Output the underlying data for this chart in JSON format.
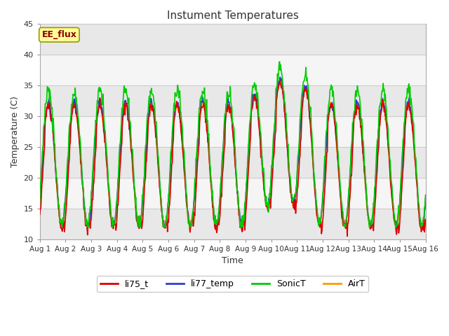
{
  "title": "Instument Temperatures",
  "xlabel": "Time",
  "ylabel": "Temperature (C)",
  "ylim": [
    10,
    45
  ],
  "xlim": [
    0,
    15
  ],
  "xtick_labels": [
    "Aug 1",
    "Aug 2",
    "Aug 3",
    "Aug 4",
    "Aug 5",
    "Aug 6",
    "Aug 7",
    "Aug 8",
    "Aug 9",
    "Aug 10",
    "Aug 11",
    "Aug 12",
    "Aug 13",
    "Aug 14",
    "Aug 15",
    "Aug 16"
  ],
  "ytick_values": [
    10,
    15,
    20,
    25,
    30,
    35,
    40,
    45
  ],
  "fig_bg_color": "#ffffff",
  "plot_bg_color": "#ffffff",
  "band_colors": [
    "#e8e8e8",
    "#f5f5f5"
  ],
  "grid_color": "#cccccc",
  "annotation_text": "EE_flux",
  "annotation_fg": "#8B0000",
  "annotation_bg": "#ffff99",
  "annotation_border": "#999900",
  "line_colors": {
    "li75_t": "#dd0000",
    "li77_temp": "#2244cc",
    "SonicT": "#00cc00",
    "AirT": "#ff9900"
  },
  "line_width": 1.2,
  "n_points": 720,
  "days": 15
}
